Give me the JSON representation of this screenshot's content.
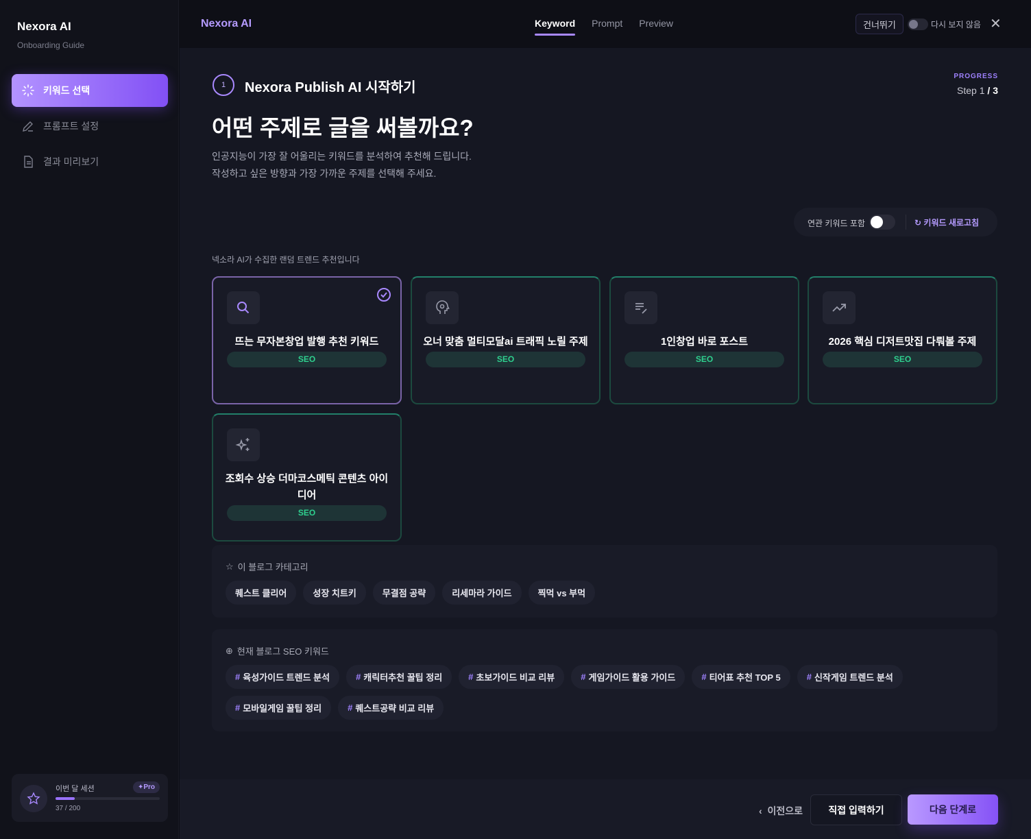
{
  "sidebar": {
    "brand": "Nexora AI",
    "subtitle": "Onboarding Guide",
    "items": [
      {
        "label": "키워드 선택",
        "icon": "sparkle-loader-icon",
        "active": true
      },
      {
        "label": "프롬프트 설정",
        "icon": "pen-icon"
      },
      {
        "label": "결과 미리보기",
        "icon": "document-icon"
      }
    ],
    "session": {
      "label": "이번 달 세션",
      "badge": "Pro",
      "count": "37 / 200",
      "used": 37,
      "total": 200
    }
  },
  "topbar": {
    "logo": "Nexora AI",
    "tabs": [
      {
        "label": "Keyword",
        "active": true
      },
      {
        "label": "Prompt"
      },
      {
        "label": "Preview"
      }
    ],
    "skip": "건너뛰기",
    "dont_show": "다시 보지 않음"
  },
  "header": {
    "step_number": "1",
    "step_title": "Nexora Publish AI 시작하기",
    "title": "어떤 주제로 글을 써볼까요?",
    "desc1": "인공지능이 가장 잘 어울리는 키워드를 분석하여 추천해 드립니다.",
    "desc2": "작성하고 싶은 방향과 가장 가까운 주제를 선택해 주세요.",
    "progress_label": "PROGRESS",
    "progress_step": "Step 1",
    "progress_total": "3"
  },
  "controls": {
    "related_label": "연관 키워드 포함",
    "related_on": true,
    "refresh": "키워드 새로고침"
  },
  "trend_label": "넥소라 AI가 수집한 랜덤 트렌드 추천입니다",
  "cards": [
    {
      "title": "뜨는 무자본창업 발행 추천 키워드",
      "tag": "SEO",
      "icon": "search-icon",
      "selected": true
    },
    {
      "title": "오너 맞춤 멀티모달ai 트래픽 노릴 주제",
      "tag": "SEO",
      "icon": "head-gear-icon"
    },
    {
      "title": "1인창업 바로 포스트",
      "tag": "SEO",
      "icon": "list-edit-icon"
    },
    {
      "title": "2026 핵심 디저트맛집 다뤄볼 주제",
      "tag": "SEO",
      "icon": "trending-up-icon"
    },
    {
      "title": "조회수 상승 더마코스메틱 콘텐츠 아이디어",
      "tag": "SEO",
      "icon": "sparkles-icon"
    }
  ],
  "category": {
    "title": "이 블로그 카테고리",
    "chips": [
      "퀘스트 클리어",
      "성장 치트키",
      "무결점 공략",
      "리세마라 가이드",
      "찍먹 vs 부먹"
    ]
  },
  "seo": {
    "title": "현재 블로그 SEO 키워드",
    "chips": [
      "육성가이드 트렌드 분석",
      "캐릭터추천 꿀팁 정리",
      "초보가이드 비교 리뷰",
      "게임가이드 활용 가이드",
      "티어표 추천 TOP 5",
      "신작게임 트렌드 분석",
      "모바일게임 꿀팁 정리",
      "퀘스트공략 비교 리뷰"
    ]
  },
  "footer": {
    "prev": "이전으로",
    "direct": "직접 입력하기",
    "next": "다음 단계로"
  },
  "colors": {
    "accent": "#9f82ff",
    "seo_green": "#2fd08f"
  }
}
